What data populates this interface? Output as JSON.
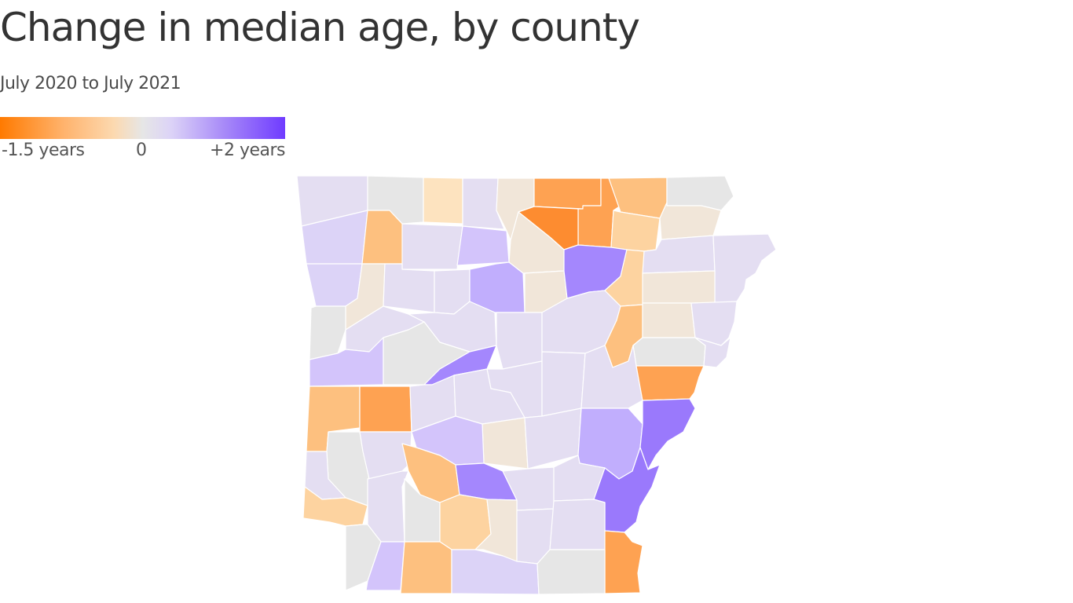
{
  "header": {
    "title": "Change in median age, by county",
    "subtitle": "July 2020 to July 2021"
  },
  "legend": {
    "min_label": "-1.5 years",
    "mid_label": "0",
    "max_label": "+2 years",
    "min_value": -1.5,
    "max_value": 2,
    "colors": {
      "neg_strong": "#ff7a00",
      "neg_mid": "#ffb26b",
      "neg_light": "#fcd9b0",
      "neutral": "#e6e6e6",
      "pos_light": "#dcd3f7",
      "pos_mid": "#a98cf8",
      "pos_strong": "#6f3bff"
    }
  },
  "map": {
    "region": "Arkansas",
    "colors": {
      "gray": "#e6e6e6",
      "tan": "#f1e6d9",
      "peach_light": "#fde3bf",
      "peach": "#fdd3a0",
      "orange_light": "#fdc07f",
      "orange": "#fea252",
      "orange_strong": "#fd8c30",
      "lav_light": "#e4def2",
      "lav": "#dcd3f7",
      "lav_mid": "#d3c4fb",
      "lav_deep": "#c1aefd",
      "purple": "#a487fd",
      "purple_strong": "#9a79fc"
    }
  }
}
